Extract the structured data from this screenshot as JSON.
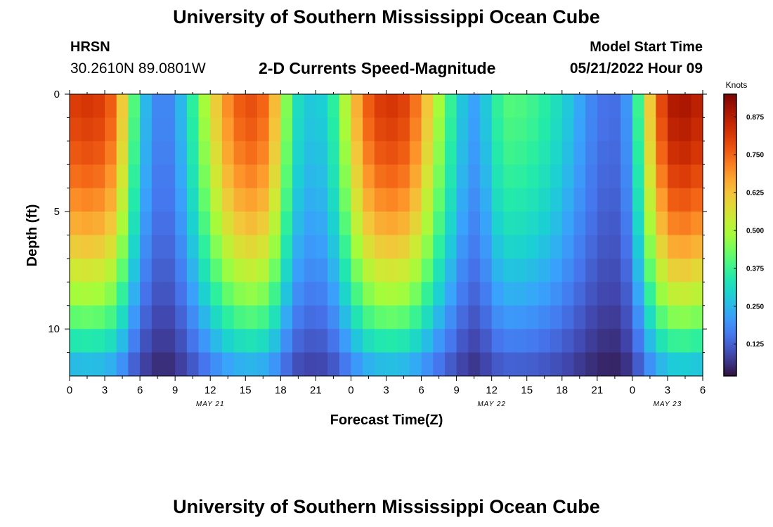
{
  "header": {
    "title": "University of Southern Mississippi Ocean Cube",
    "station": "HRSN",
    "coordinates": "30.2610N  89.0801W",
    "subtitle": "2-D Currents Speed-Magnitude",
    "model_start_label": "Model Start Time",
    "model_start_value": "05/21/2022 Hour 09"
  },
  "footer": {
    "title": "University of Southern Mississippi Ocean Cube"
  },
  "chart_data": {
    "type": "heatmap",
    "title": "2-D Currents Speed-Magnitude",
    "xlabel": "Forecast Time(Z)",
    "ylabel": "Depth (ft)",
    "x_ticks": [
      "0",
      "3",
      "6",
      "9",
      "12",
      "15",
      "18",
      "21",
      "0",
      "3",
      "6",
      "9",
      "12",
      "15",
      "18",
      "21",
      "0",
      "3",
      "6"
    ],
    "x_tick_hours": [
      0,
      3,
      6,
      9,
      12,
      15,
      18,
      21,
      24,
      27,
      30,
      33,
      36,
      39,
      42,
      45,
      48,
      51,
      54
    ],
    "date_labels": [
      {
        "text": "MAY 21",
        "hour": 12
      },
      {
        "text": "MAY 22",
        "hour": 36
      },
      {
        "text": "MAY 23",
        "hour": 51
      }
    ],
    "y_ticks": [
      "0",
      "5",
      "10"
    ],
    "y_tick_depths": [
      0,
      5,
      10
    ],
    "xlim": [
      0,
      54
    ],
    "ylim": [
      0,
      12
    ],
    "depth_bins": 12,
    "time_step_hours": 1,
    "colorbar": {
      "label": "Knots",
      "ticks": [
        "0.125",
        "0.250",
        "0.375",
        "0.500",
        "0.625",
        "0.750",
        "0.875"
      ],
      "tick_values": [
        0.125,
        0.25,
        0.375,
        0.5,
        0.625,
        0.75,
        0.875
      ],
      "range": [
        0.02,
        0.95
      ]
    },
    "surface_speed_by_hour": [
      0.8,
      0.82,
      0.82,
      0.8,
      0.72,
      0.5,
      0.3,
      0.2,
      0.16,
      0.2,
      0.3,
      0.42,
      0.55,
      0.66,
      0.74,
      0.78,
      0.78,
      0.72,
      0.55,
      0.35,
      0.28,
      0.27,
      0.3,
      0.42,
      0.58,
      0.72,
      0.8,
      0.82,
      0.82,
      0.78,
      0.68,
      0.55,
      0.42,
      0.32,
      0.22,
      0.22,
      0.33,
      0.4,
      0.4,
      0.39,
      0.37,
      0.34,
      0.3,
      0.25,
      0.2,
      0.16,
      0.14,
      0.15,
      0.25,
      0.5,
      0.72,
      0.86,
      0.9,
      0.88,
      0.85
    ]
  }
}
